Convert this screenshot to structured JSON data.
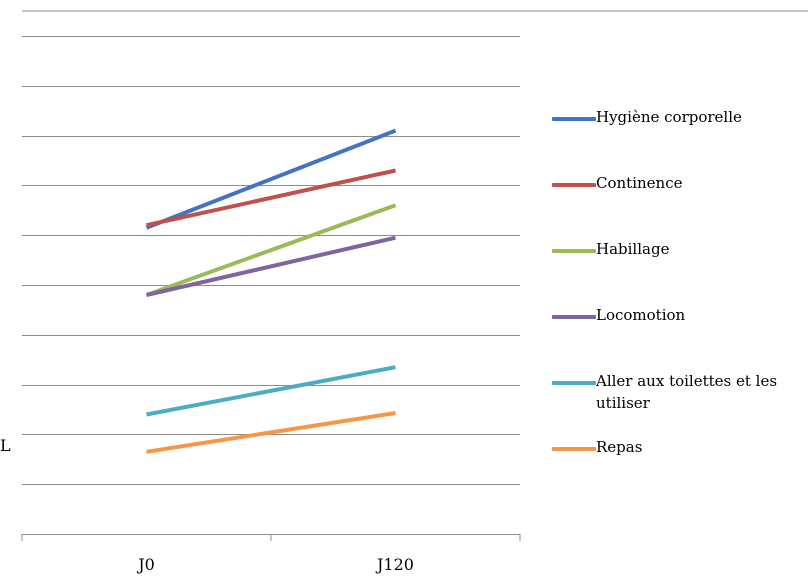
{
  "chart_data": {
    "type": "line",
    "categories": [
      "J0",
      "J120"
    ],
    "ylim": [
      0,
      10
    ],
    "grid": true,
    "legend_position": "right",
    "series": [
      {
        "name": "Hygiène corporelle",
        "color": "#4472c4",
        "values": [
          6.15,
          8.1
        ]
      },
      {
        "name": "Continence",
        "color": "#c0504d",
        "values": [
          6.2,
          7.3
        ]
      },
      {
        "name": "Habillage",
        "color": "#9bbb59",
        "values": [
          4.8,
          6.6
        ]
      },
      {
        "name": "Locomotion",
        "color": "#8064a2",
        "values": [
          4.8,
          5.95
        ]
      },
      {
        "name": "Aller aux toilettes et les utiliser",
        "color": "#4bacc6",
        "values": [
          2.4,
          3.35
        ]
      },
      {
        "name": "Repas",
        "color": "#f79646",
        "values": [
          1.65,
          2.43
        ]
      }
    ]
  },
  "edge_glyph": "L"
}
